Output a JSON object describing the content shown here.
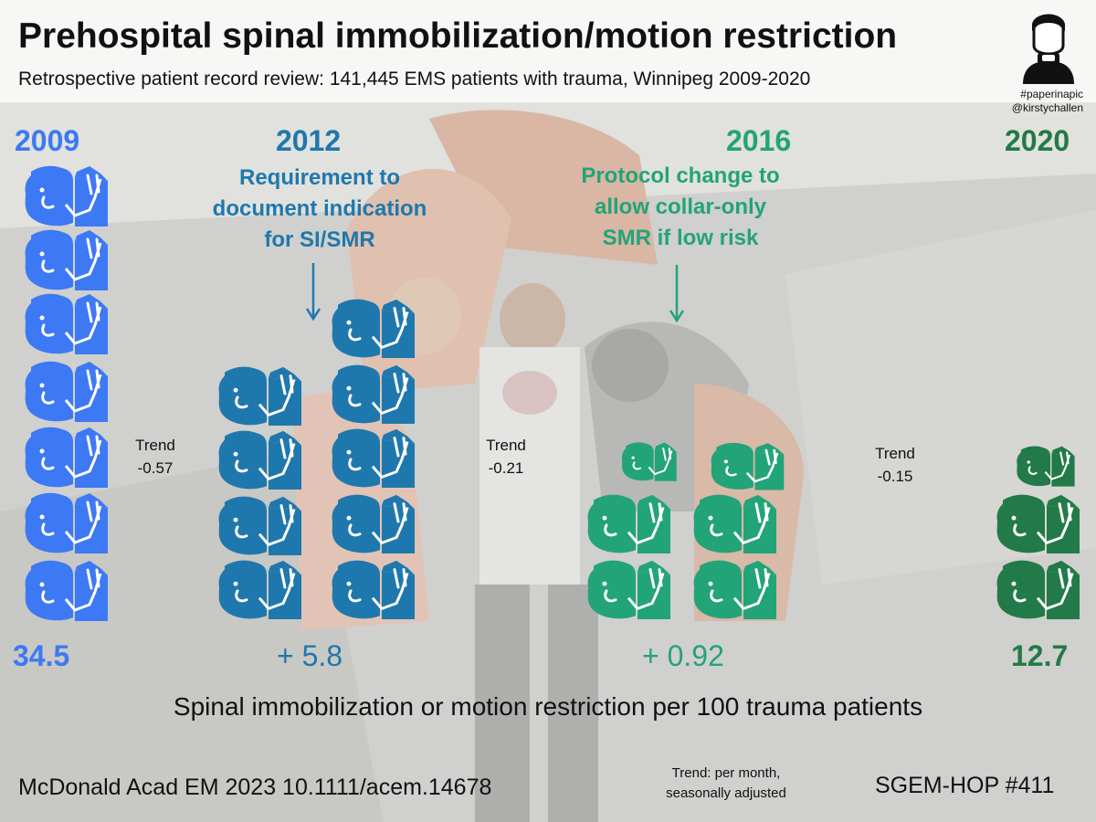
{
  "header": {
    "title": "Prehospital spinal immobilization/motion restriction",
    "subtitle": "Retrospective patient record review: 141,445 EMS patients with trauma, Winnipeg 2009-2020",
    "hashtag": "#paperinapic",
    "handle": "@kirstychallen",
    "logo_icon": "person-with-neck-collar-icon"
  },
  "timeline": {
    "years": [
      "2009",
      "2012",
      "2016",
      "2020"
    ],
    "events": [
      {
        "year": "2012",
        "lines": [
          "Requirement to",
          "document indication",
          "for SI/SMR"
        ],
        "color": "#1f78ad"
      },
      {
        "year": "2016",
        "lines": [
          "Protocol change to",
          "allow collar-only",
          "SMR if low risk"
        ],
        "color": "#22a478"
      }
    ],
    "trend_label": "Trend",
    "trends": [
      "-0.57",
      "-0.21",
      "-0.15"
    ]
  },
  "chart_data": {
    "type": "table",
    "metric": "Spinal immobilization or motion restriction per 100 trauma patients",
    "start": {
      "year": "2009",
      "value": 34.5,
      "label": "34.5"
    },
    "level_changes": [
      {
        "year": "2012",
        "value": 5.8,
        "label": "+ 5.8"
      },
      {
        "year": "2016",
        "value": 0.92,
        "label": "+ 0.92"
      }
    ],
    "end": {
      "year": "2020",
      "value": 12.7,
      "label": "12.7"
    },
    "trends_per_month": [
      -0.57,
      -0.21,
      -0.15
    ]
  },
  "caption": "Spinal immobilization or motion restriction per 100 trauma patients",
  "footer": {
    "citation": "McDonald Acad EM 2023 10.1111/acem.14678",
    "trend_definition": [
      "Trend: per month,",
      "seasonally adjusted"
    ],
    "sgem": "SGEM-HOP #411"
  },
  "colors": {
    "period_2009": "#3d79f4",
    "period_2012": "#1f78ad",
    "period_2016": "#22a478",
    "period_2020": "#227a48"
  },
  "icon_name": "head-with-neck-collar-icon"
}
